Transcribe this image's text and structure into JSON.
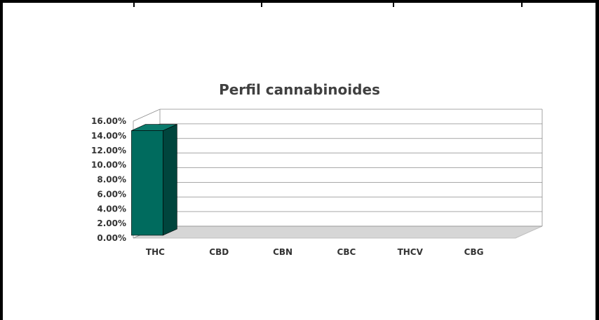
{
  "chart_data": {
    "type": "bar",
    "title": "Perfil cannabinoides",
    "categories": [
      "THC",
      "CBD",
      "CBN",
      "CBC",
      "THCV",
      "CBG"
    ],
    "series": [
      {
        "values": [
          0.147,
          0,
          0,
          0,
          0,
          0
        ]
      }
    ],
    "ylim": [
      0,
      0.16
    ],
    "yticks": [
      "0.00%",
      "2.00%",
      "4.00%",
      "6.00%",
      "8.00%",
      "10.00%",
      "12.00%",
      "14.00%",
      "16.00%"
    ],
    "grid": true,
    "legend": "none",
    "style": "3d",
    "colors": {
      "bar_front": "#006b5e",
      "bar_side": "#00453d",
      "bar_top": "#0a7a6c",
      "floor": "#d6d6d6",
      "grid": "#8c8c8c"
    }
  }
}
